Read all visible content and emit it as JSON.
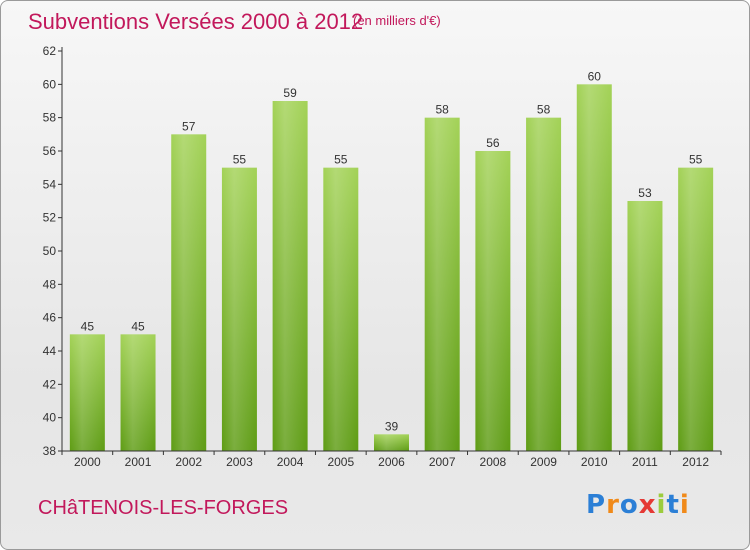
{
  "header": {
    "title": "Subventions Versées 2000 à 2012",
    "unit_note": "(en milliers d'€)"
  },
  "footer": {
    "commune": "CHâTENOIS-LES-FORGES",
    "logo_letters": [
      "P",
      "r",
      "o",
      "x",
      "i",
      "t",
      "i"
    ]
  },
  "colors": {
    "title": "#c2185b",
    "bar_top": "#9ccc4a",
    "bar_bottom": "#5e9c14",
    "axis": "#333333",
    "grid": "#d0d0d0"
  },
  "chart_data": {
    "type": "bar",
    "title": "Subventions Versées 2000 à 2012",
    "subtitle": "(en milliers d'€)",
    "xlabel": "",
    "ylabel": "",
    "categories": [
      "2000",
      "2001",
      "2002",
      "2003",
      "2004",
      "2005",
      "2006",
      "2007",
      "2008",
      "2009",
      "2010",
      "2011",
      "2012"
    ],
    "values": [
      45,
      45,
      57,
      55,
      59,
      55,
      39,
      58,
      56,
      58,
      60,
      53,
      55
    ],
    "ylim": [
      38,
      62
    ],
    "yticks": [
      38,
      40,
      42,
      44,
      46,
      48,
      50,
      52,
      54,
      56,
      58,
      60,
      62
    ],
    "grid": false,
    "data_labels": true
  }
}
